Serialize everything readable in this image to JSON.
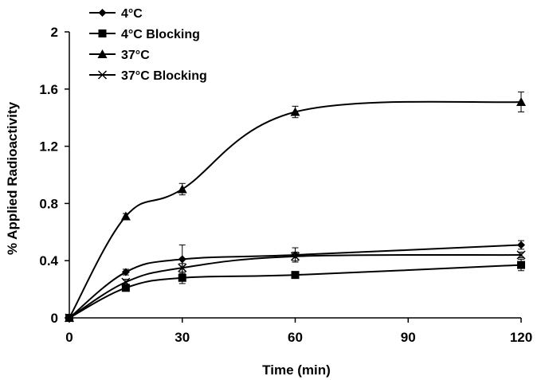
{
  "chart_data": {
    "type": "line",
    "title": "",
    "xlabel": "Time (min)",
    "ylabel": "% Applied Radioactivity",
    "xlim": [
      0,
      120
    ],
    "ylim": [
      0,
      2
    ],
    "xticks": [
      0,
      30,
      60,
      90,
      120
    ],
    "yticks": [
      0,
      0.4,
      0.8,
      1.2,
      1.6,
      2
    ],
    "ytick_labels": [
      "0",
      "0.4",
      "0.8",
      "1.2",
      "1.6",
      "2"
    ],
    "grid": false,
    "legend_position": "top-left",
    "line_color": "#000000",
    "x": [
      0,
      15,
      30,
      60,
      120
    ],
    "series": [
      {
        "name": "4°C",
        "marker": "diamond",
        "values": [
          0,
          0.32,
          0.41,
          0.44,
          0.51
        ],
        "errors": [
          0,
          0.02,
          0.1,
          0.05,
          0.03
        ]
      },
      {
        "name": "4°C Blocking",
        "marker": "square",
        "values": [
          0,
          0.21,
          0.28,
          0.3,
          0.37
        ],
        "errors": [
          0,
          0.02,
          0.04,
          0.02,
          0.04
        ]
      },
      {
        "name": "37°C",
        "marker": "triangle",
        "values": [
          0,
          0.71,
          0.9,
          1.44,
          1.51
        ],
        "errors": [
          0,
          0.02,
          0.04,
          0.04,
          0.07
        ]
      },
      {
        "name": "37°C Blocking",
        "marker": "x",
        "values": [
          0,
          0.25,
          0.35,
          0.43,
          0.44
        ],
        "errors": [
          0,
          0.02,
          0.03,
          0.03,
          0.02
        ]
      }
    ]
  }
}
